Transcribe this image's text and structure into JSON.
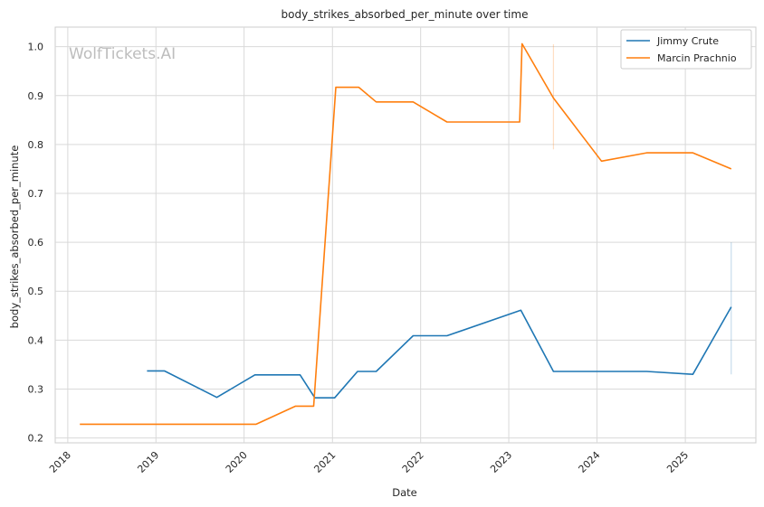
{
  "chart_data": {
    "type": "line",
    "title": "body_strikes_absorbed_per_minute over time",
    "xlabel": "Date",
    "ylabel": "body_strikes_absorbed_per_minute",
    "watermark": "WolfTickets.AI",
    "xlim": [
      "2017-11-10",
      "2025-10-20"
    ],
    "ylim": [
      0.19,
      1.04
    ],
    "x_ticks": [
      "2018-01-01",
      "2019-01-01",
      "2020-01-01",
      "2021-01-01",
      "2022-01-01",
      "2023-01-01",
      "2024-01-01",
      "2025-01-01"
    ],
    "x_tick_labels": [
      "2018",
      "2019",
      "2020",
      "2021",
      "2022",
      "2023",
      "2024",
      "2025"
    ],
    "y_ticks": [
      0.2,
      0.3,
      0.4,
      0.5,
      0.6,
      0.7,
      0.8,
      0.9,
      1.0
    ],
    "y_tick_labels": [
      "0.2",
      "0.3",
      "0.4",
      "0.5",
      "0.6",
      "0.7",
      "0.8",
      "0.9",
      "1.0"
    ],
    "grid": true,
    "legend_position": "top-right",
    "series": [
      {
        "name": "Jimmy Crute",
        "color": "#1f77b4",
        "x": [
          "2018-11-25",
          "2019-02-05",
          "2019-09-10",
          "2020-02-15",
          "2020-08-20",
          "2020-10-20",
          "2021-01-10",
          "2021-04-15",
          "2021-07-01",
          "2021-12-01",
          "2022-04-20",
          "2023-02-20",
          "2023-07-05",
          "2024-01-20",
          "2024-07-25",
          "2025-02-01",
          "2025-07-10"
        ],
        "y": [
          0.337,
          0.337,
          0.283,
          0.329,
          0.329,
          0.282,
          0.282,
          0.336,
          0.336,
          0.409,
          0.409,
          0.461,
          0.336,
          0.336,
          0.336,
          0.33,
          0.468
        ],
        "uncertainty": {
          "x": "2025-07-10",
          "low": 0.33,
          "high": 0.6
        }
      },
      {
        "name": "Marcin Prachnio",
        "color": "#ff7f0e",
        "x": [
          "2018-02-20",
          "2020-02-20",
          "2020-08-01",
          "2020-10-15",
          "2021-01-15",
          "2021-04-20",
          "2021-07-01",
          "2021-12-01",
          "2022-04-20",
          "2023-02-15",
          "2023-02-25",
          "2023-07-05",
          "2024-01-20",
          "2024-07-25",
          "2025-02-01",
          "2025-07-10"
        ],
        "y": [
          0.228,
          0.228,
          0.265,
          0.265,
          0.917,
          0.917,
          0.887,
          0.887,
          0.846,
          0.846,
          1.006,
          0.895,
          0.766,
          0.783,
          0.783,
          0.75
        ],
        "uncertainty": {
          "x": "2023-07-05",
          "low": 0.79,
          "high": 1.005
        }
      }
    ]
  }
}
